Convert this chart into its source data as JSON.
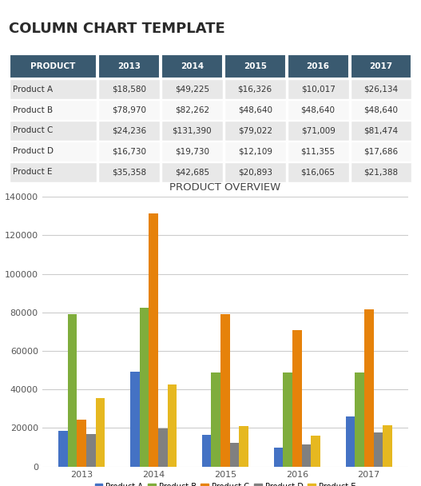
{
  "title": "COLUMN CHART TEMPLATE",
  "chart_title": "PRODUCT OVERVIEW",
  "years": [
    "2013",
    "2014",
    "2015",
    "2016",
    "2017"
  ],
  "products": [
    "Product A",
    "Product B",
    "Product C",
    "Product D",
    "Product E"
  ],
  "values": {
    "Product A": [
      18580,
      49225,
      16326,
      10017,
      26134
    ],
    "Product B": [
      78970,
      82262,
      48640,
      48640,
      48640
    ],
    "Product C": [
      24236,
      131390,
      79022,
      71009,
      81474
    ],
    "Product D": [
      16730,
      19730,
      12109,
      11355,
      17686
    ],
    "Product E": [
      35358,
      42685,
      20893,
      16065,
      21388
    ]
  },
  "bar_colors": {
    "Product A": "#4472c4",
    "Product B": "#7fad3c",
    "Product C": "#e6820a",
    "Product D": "#808080",
    "Product E": "#e6b820"
  },
  "header_bg": "#3a5a70",
  "header_fg": "#ffffff",
  "row_bg_odd": "#e8e8e8",
  "row_bg_even": "#f8f8f8",
  "table_text_color": "#333333",
  "ylim": [
    0,
    140000
  ],
  "yticks": [
    0,
    20000,
    40000,
    60000,
    80000,
    100000,
    120000,
    140000
  ],
  "background_color": "#ffffff",
  "col_labels": [
    "PRODUCT",
    "2013",
    "2014",
    "2015",
    "2016",
    "2017"
  ],
  "formatted_values": {
    "Product A": [
      "$18,580",
      "$49,225",
      "$16,326",
      "$10,017",
      "$26,134"
    ],
    "Product B": [
      "$78,970",
      "$82,262",
      "$48,640",
      "$48,640",
      "$48,640"
    ],
    "Product C": [
      "$24,236",
      "$131,390",
      "$79,022",
      "$71,009",
      "$81,474"
    ],
    "Product D": [
      "$16,730",
      "$19,730",
      "$12,109",
      "$11,355",
      "$17,686"
    ],
    "Product E": [
      "$35,358",
      "$42,685",
      "$20,893",
      "$16,065",
      "$21,388"
    ]
  }
}
